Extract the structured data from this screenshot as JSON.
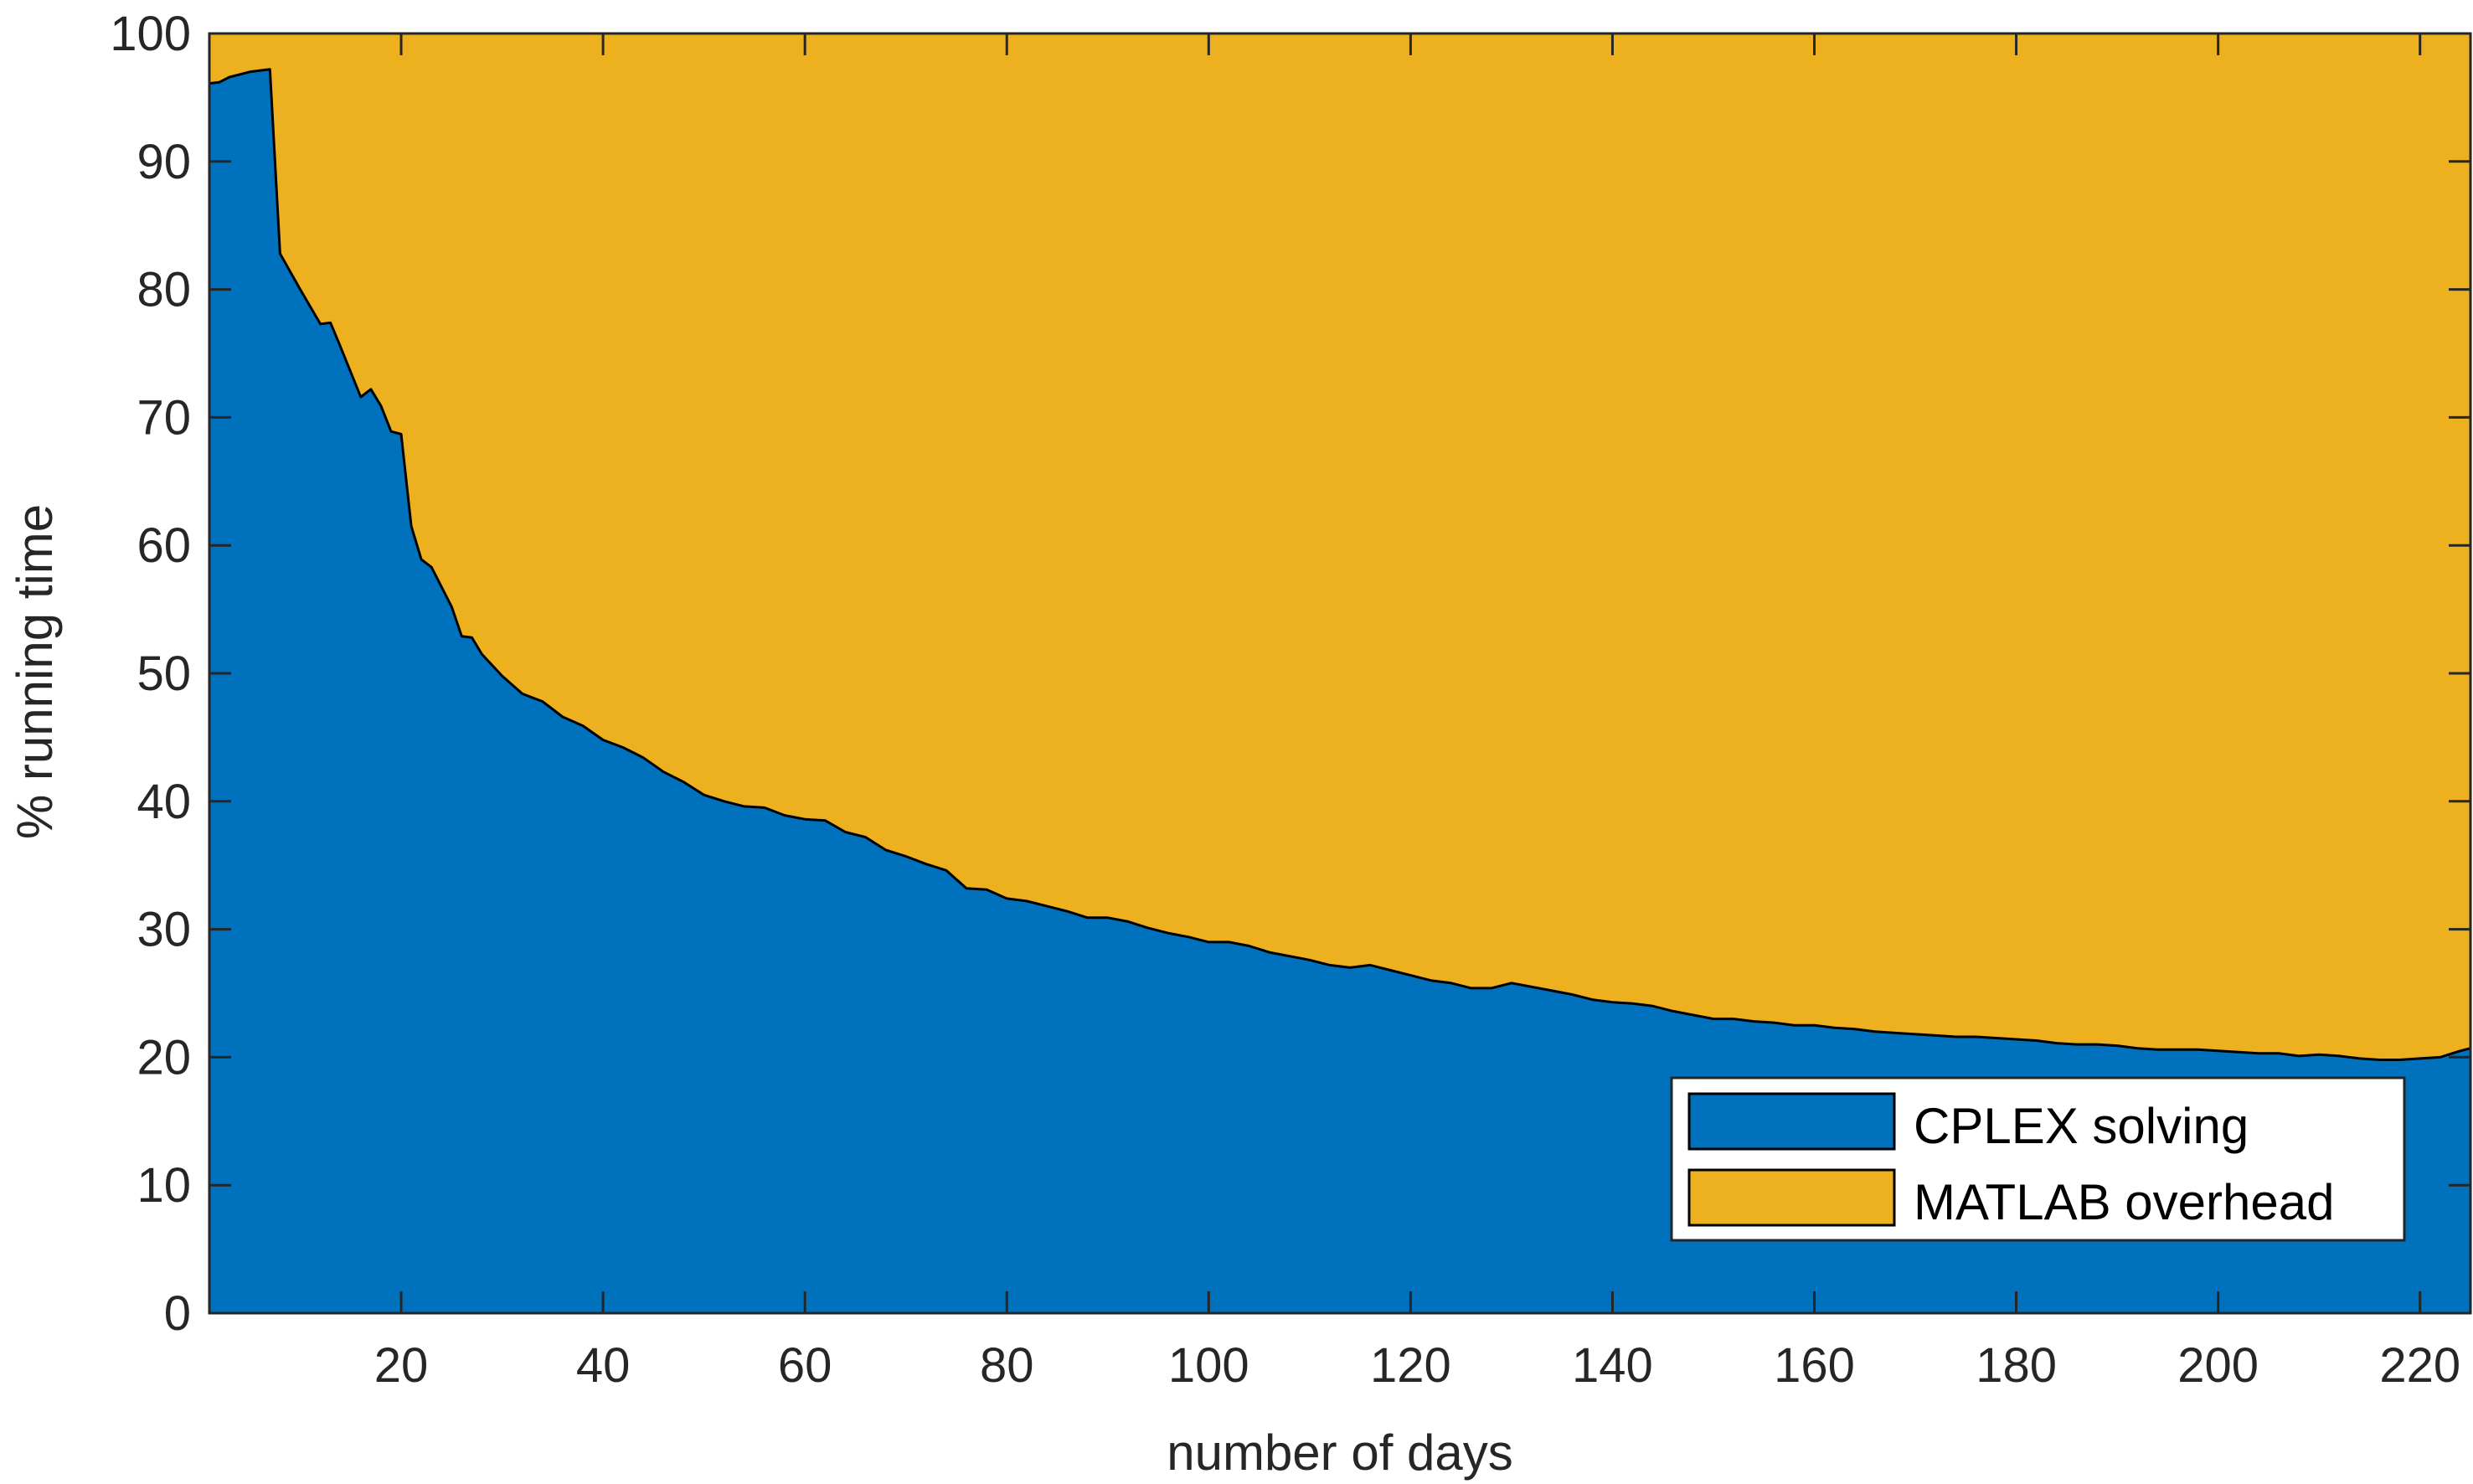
{
  "chart_data": {
    "type": "area",
    "stacked": true,
    "title": "",
    "xlabel": "number of days",
    "ylabel": "% running time",
    "xlim": [
      1,
      225
    ],
    "ylim": [
      0,
      100
    ],
    "xticks": [
      20,
      40,
      60,
      80,
      100,
      120,
      140,
      160,
      180,
      200,
      220
    ],
    "yticks": [
      0,
      10,
      20,
      30,
      40,
      50,
      60,
      70,
      80,
      90,
      100
    ],
    "grid": false,
    "legend_position": "bottom-right",
    "series": [
      {
        "name": "CPLEX solving",
        "color": "#0072BD",
        "x": [
          1,
          2,
          3,
          4,
          5,
          6,
          7,
          8,
          10,
          12,
          13,
          14,
          16,
          17,
          18,
          19,
          20,
          21,
          22,
          23,
          25,
          26,
          27,
          28,
          30,
          32,
          34,
          36,
          38,
          40,
          42,
          44,
          46,
          48,
          50,
          52,
          54,
          56,
          58,
          60,
          62,
          64,
          66,
          68,
          70,
          72,
          74,
          76,
          78,
          80,
          82,
          84,
          86,
          88,
          90,
          92,
          94,
          96,
          98,
          100,
          102,
          104,
          106,
          108,
          110,
          112,
          114,
          116,
          118,
          120,
          122,
          124,
          126,
          128,
          130,
          132,
          134,
          136,
          138,
          140,
          142,
          144,
          146,
          148,
          150,
          152,
          154,
          156,
          158,
          160,
          162,
          164,
          166,
          168,
          170,
          172,
          174,
          176,
          178,
          180,
          182,
          184,
          186,
          188,
          190,
          192,
          194,
          196,
          198,
          200,
          202,
          204,
          206,
          208,
          210,
          212,
          214,
          216,
          218,
          220,
          222,
          224,
          225
        ],
        "values": [
          96.1,
          96.2,
          96.6,
          96.8,
          97.0,
          97.1,
          97.2,
          82.8,
          80.0,
          77.3,
          77.4,
          75.5,
          71.6,
          72.2,
          70.9,
          68.9,
          68.7,
          61.5,
          58.9,
          58.3,
          55.2,
          52.9,
          52.8,
          51.5,
          49.8,
          48.4,
          47.8,
          46.6,
          45.9,
          44.8,
          44.2,
          43.4,
          42.3,
          41.5,
          40.5,
          40.0,
          39.6,
          39.5,
          38.9,
          38.6,
          38.5,
          37.6,
          37.2,
          36.2,
          35.7,
          35.1,
          34.6,
          33.2,
          33.1,
          32.4,
          32.2,
          31.8,
          31.4,
          30.9,
          30.9,
          30.6,
          30.1,
          29.7,
          29.4,
          29.0,
          29.0,
          28.7,
          28.2,
          27.9,
          27.6,
          27.2,
          27.0,
          27.2,
          26.8,
          26.4,
          26.0,
          25.8,
          25.4,
          25.4,
          25.8,
          25.5,
          25.2,
          24.9,
          24.5,
          24.3,
          24.2,
          24.0,
          23.6,
          23.3,
          23.0,
          23.0,
          22.8,
          22.7,
          22.5,
          22.5,
          22.3,
          22.2,
          22.0,
          21.9,
          21.8,
          21.7,
          21.6,
          21.6,
          21.5,
          21.4,
          21.3,
          21.1,
          21.0,
          21.0,
          20.9,
          20.7,
          20.6,
          20.6,
          20.6,
          20.5,
          20.4,
          20.3,
          20.3,
          20.1,
          20.2,
          20.1,
          19.9,
          19.8,
          19.8,
          19.9,
          20.0,
          20.5,
          20.7
        ]
      },
      {
        "name": "MATLAB overhead",
        "color": "#EDB120",
        "values_note_complement": true
      }
    ]
  }
}
